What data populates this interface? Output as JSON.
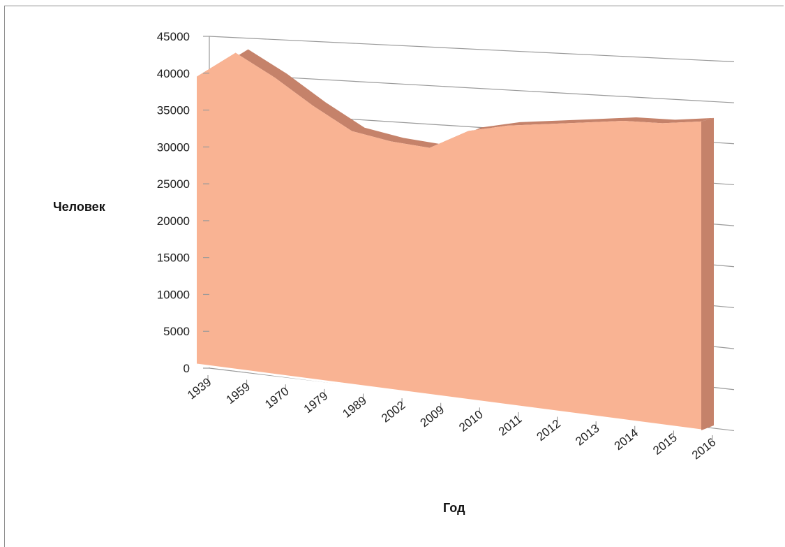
{
  "chart_data": {
    "type": "area",
    "title": "",
    "xlabel": "Год",
    "ylabel": "Человек",
    "categories": [
      "1939",
      "1959",
      "1970",
      "1979",
      "1989",
      "2002",
      "2009",
      "2010",
      "2011",
      "2012",
      "2013",
      "2014",
      "2015",
      "2016"
    ],
    "series": [
      {
        "values": [
          40000,
          43500,
          40500,
          37000,
          34000,
          33000,
          32500,
          35000,
          36000,
          36500,
          37000,
          37500,
          37500,
          38000
        ]
      }
    ],
    "ylim": [
      0,
      45000
    ],
    "yticks": [
      "0",
      "5000",
      "10000",
      "15000",
      "20000",
      "25000",
      "30000",
      "35000",
      "40000",
      "45000"
    ],
    "grid": true,
    "legend": "none",
    "style": "3d-perspective",
    "colors": {
      "area_front": "#f9b393",
      "area_top": "#c5826a",
      "grid": "#9a9a9a",
      "wall_edge": "#ffffff"
    }
  }
}
